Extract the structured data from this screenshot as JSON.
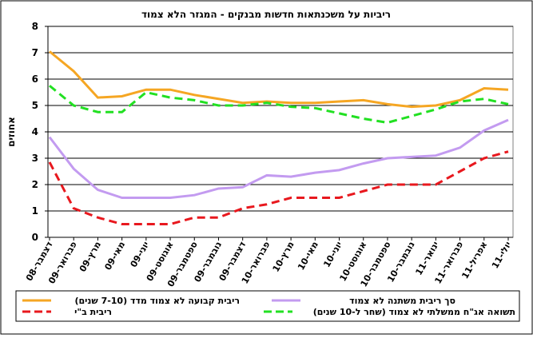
{
  "chart_data": {
    "type": "line",
    "title": "ריביות על משכנתאות חדשות מבנקים - המגזר הלא צמוד",
    "y_label": "אחוזים",
    "categories": [
      "דצמבר-08",
      "פברואר-09",
      "מרץ-09",
      "מאי-09",
      "יוני-09",
      "אוגוסט-09",
      "ספטמבר-09",
      "נובמבר-09",
      "דצמבר-09",
      "פברואר-10",
      "מרץ-10",
      "מאי-10",
      "יוני-10",
      "אוגוסט-10",
      "ספטמבר-10",
      "נובמבר-10",
      "ינואר-11",
      "פברואר-11",
      "אפריל-11",
      "יולי-11"
    ],
    "series": [
      {
        "name": "ריבית קבועה לא צמוד מדד (7-10 שנים)",
        "color": "#f5a623",
        "dash": false,
        "values": [
          7.05,
          6.3,
          5.3,
          5.35,
          5.6,
          5.6,
          5.4,
          5.25,
          5.1,
          5.15,
          5.1,
          5.1,
          5.15,
          5.2,
          5.05,
          4.95,
          5.0,
          5.2,
          5.65,
          5.6
        ]
      },
      {
        "name": "סך ריבית משתנה לא צמוד",
        "color": "#c39bf0",
        "dash": false,
        "values": [
          3.8,
          2.6,
          1.8,
          1.5,
          1.5,
          1.5,
          1.6,
          1.85,
          1.9,
          2.35,
          2.3,
          2.45,
          2.55,
          2.8,
          3.0,
          3.05,
          3.1,
          3.4,
          4.05,
          4.45
        ]
      },
      {
        "name": "ריבית ב\"י",
        "color": "#e8181e",
        "dash": true,
        "values": [
          2.85,
          1.1,
          0.75,
          0.5,
          0.5,
          0.5,
          0.75,
          0.75,
          1.1,
          1.25,
          1.5,
          1.5,
          1.5,
          1.75,
          2.0,
          2.0,
          2.0,
          2.5,
          3.0,
          3.25
        ]
      },
      {
        "name": "תשואה אג\"ח ממשלתי לא צמוד (שחר ל-10 שנים)",
        "color": "#22e022",
        "dash": true,
        "values": [
          5.75,
          5.0,
          4.75,
          4.75,
          5.5,
          5.3,
          5.2,
          5.0,
          5.0,
          5.1,
          4.95,
          4.9,
          4.7,
          4.5,
          4.35,
          4.6,
          4.85,
          5.15,
          5.25,
          5.05
        ]
      }
    ],
    "ylim": [
      0,
      8
    ],
    "yticks": [
      0,
      1,
      2,
      3,
      4,
      5,
      6,
      7,
      8
    ],
    "grid": true
  }
}
